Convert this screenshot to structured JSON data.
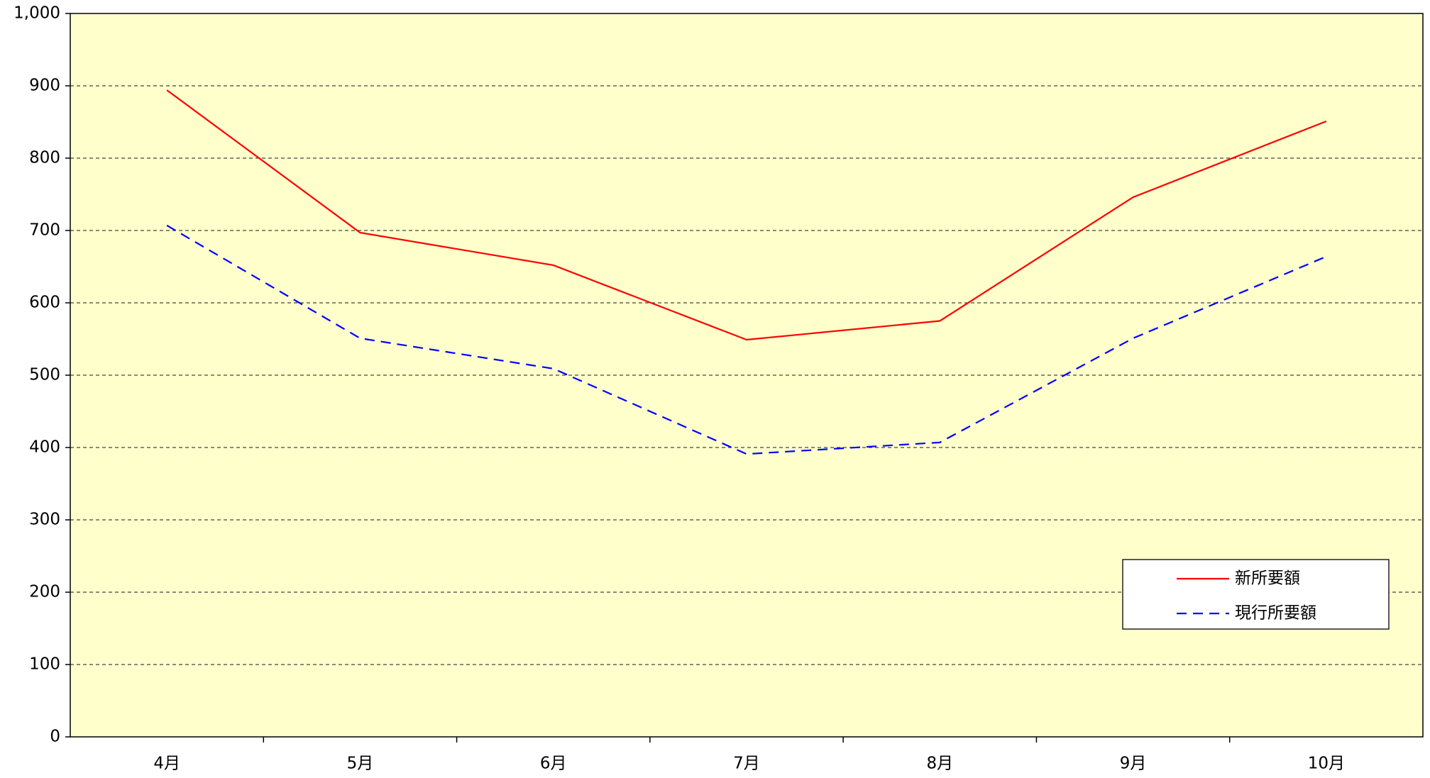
{
  "chart_data": {
    "type": "line",
    "categories": [
      "4月",
      "5月",
      "6月",
      "7月",
      "8月",
      "9月",
      "10月"
    ],
    "series": [
      {
        "name": "新所要額",
        "color": "#ff0000",
        "dash": "solid",
        "values": [
          894,
          697,
          652,
          549,
          575,
          746,
          851
        ]
      },
      {
        "name": "現行所要額",
        "color": "#0000ff",
        "dash": "dashed",
        "values": [
          707,
          551,
          509,
          391,
          407,
          551,
          664
        ]
      }
    ],
    "ylim": [
      0,
      1000
    ],
    "yticks": [
      0,
      100,
      200,
      300,
      400,
      500,
      600,
      700,
      800,
      900,
      {
        "value": 1000,
        "label": "1,000"
      }
    ],
    "grid": true,
    "background": "#ffffcc",
    "legend": "lower right"
  }
}
